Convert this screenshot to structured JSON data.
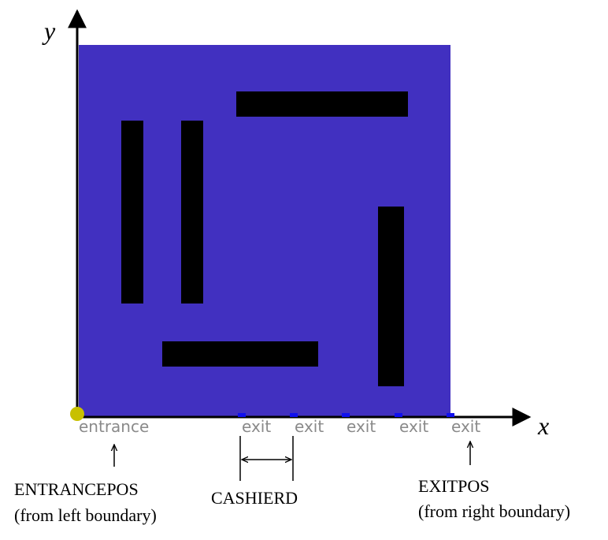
{
  "diagram": {
    "axes": {
      "x_label": "x",
      "y_label": "y"
    },
    "colors": {
      "store_floor": "#4130c0",
      "shelf": "#000000",
      "exit_marker": "#1010ee",
      "entrance_marker": "#c8c000",
      "small_label": "#8a8a8a",
      "axis": "#000000"
    },
    "entrance_label": "entrance",
    "exit_labels": [
      "exit",
      "exit",
      "exit",
      "exit",
      "exit"
    ],
    "annotations": {
      "entrance_pos": {
        "title": "ENTRANCEPOS",
        "subtitle": "(from left boundary)"
      },
      "cashier_d": {
        "title": "CASHIERD"
      },
      "exit_pos": {
        "title": "EXITPOS",
        "subtitle": "(from right boundary)"
      }
    }
  }
}
